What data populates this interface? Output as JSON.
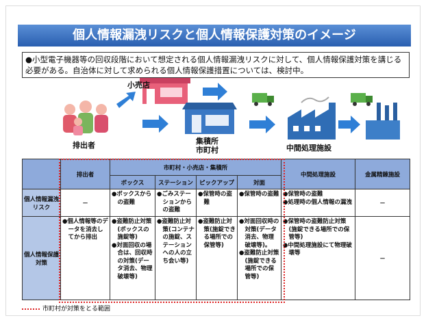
{
  "title": "個人情報漏洩リスクと個人情報保護対策のイメージ",
  "intro": "●小型電子機器等の回収段階において想定される個人情報漏洩リスクに対して、個人情報保護対策を講じる必要がある。自治体に対して求められる個人情報保護措置については、検討中。",
  "flow": {
    "retail": "小売店",
    "emitter": "排出者",
    "collection": [
      "集積所",
      "市町村"
    ],
    "intermediate": "中間処理施設"
  },
  "table": {
    "header": {
      "emitter": "排出者",
      "municipal": "市町村・小売店・集積所",
      "intermediate": "中間処理施設",
      "smelting": "金属精錬施設",
      "sub": [
        "ボックス",
        "ステーション",
        "ピックアップ",
        "対面"
      ]
    },
    "rows": [
      {
        "label": "個人情報漏洩リスク",
        "cells": [
          [
            "－"
          ],
          [
            "●ボックスからの盗難"
          ],
          [
            "●ごみステーションからの盗難"
          ],
          [
            "●保管時の盗難"
          ],
          [
            "●保管時の盗難"
          ],
          [
            "●保管時の盗難",
            "●処理時の個人情報の漏洩"
          ],
          [
            "－"
          ]
        ]
      },
      {
        "label": "個人情報保護対策",
        "cells": [
          [
            "●個人情報等のデータを消去してから排出"
          ],
          [
            "●盗難防止対策(ボックスの施錠等)",
            "●対面回収の場合は、回収時の対策(データ消去、物理破壊等)"
          ],
          [
            "●盗難防止対策(コンテナの施錠、ステーションへの人の立ち会い等)"
          ],
          [
            "●盗難防止対策(施錠できる場所での保管等)"
          ],
          [
            "●対面回収時の対策(データ消去、物理破壊等)。",
            "●盗難防止対策(施錠できる場所での保管等)"
          ],
          [
            "●保管時の盗難防止対策(施錠できる場所での保管等)",
            "●中間処理施設にて物理破壊等"
          ],
          [
            "－"
          ]
        ]
      }
    ]
  },
  "legend": "市町村が対策をとる範囲"
}
